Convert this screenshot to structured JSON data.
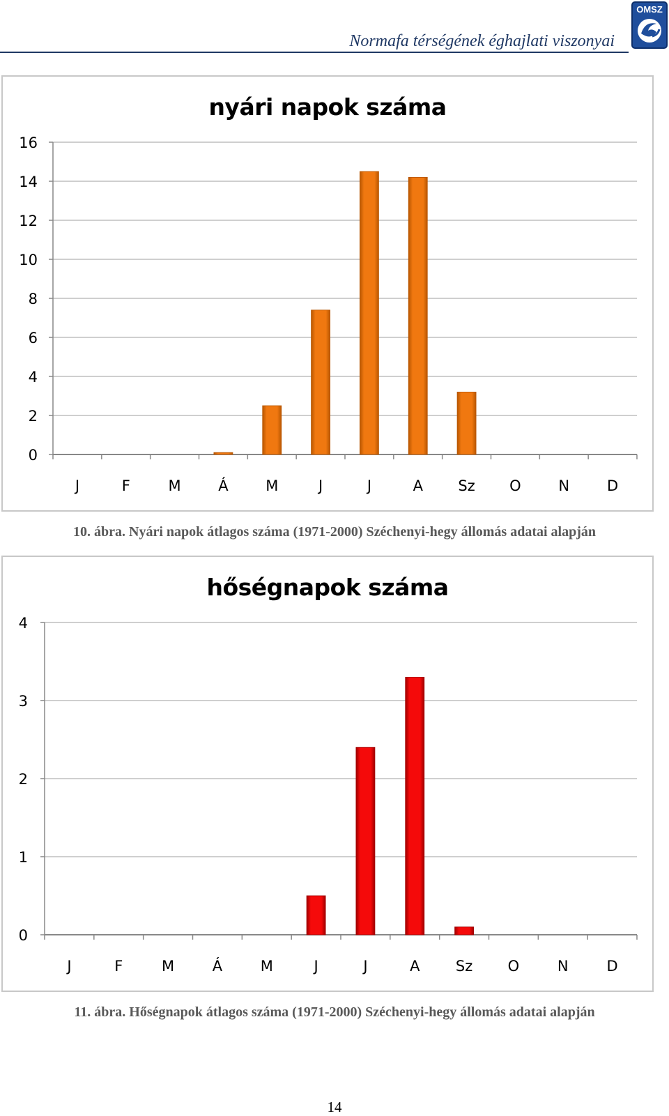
{
  "header": {
    "title": "Normafa térségének éghajlati viszonyai",
    "logo_text": "OMSZ"
  },
  "chart_data": [
    {
      "type": "bar",
      "title": "nyári napok száma",
      "categories": [
        "J",
        "F",
        "M",
        "Á",
        "M",
        "J",
        "J",
        "A",
        "Sz",
        "O",
        "N",
        "D"
      ],
      "values": [
        0,
        0,
        0,
        0.1,
        2.5,
        7.4,
        14.5,
        14.2,
        3.2,
        0,
        0,
        0
      ],
      "ylim": [
        0,
        16
      ],
      "yticks": [
        0,
        2,
        4,
        6,
        8,
        10,
        12,
        14,
        16
      ],
      "grid": true,
      "bar_color": "#f07810",
      "bar_edge_color": "#b85600",
      "caption": "10. ábra. Nyári napok átlagos száma (1971-2000) Széchenyi-hegy állomás adatai alapján"
    },
    {
      "type": "bar",
      "title": "hőségnapok száma",
      "categories": [
        "J",
        "F",
        "M",
        "Á",
        "M",
        "J",
        "J",
        "A",
        "Sz",
        "O",
        "N",
        "D"
      ],
      "values": [
        0,
        0,
        0,
        0,
        0,
        0.5,
        2.4,
        3.3,
        0.1,
        0,
        0,
        0
      ],
      "ylim": [
        0,
        4
      ],
      "yticks": [
        0,
        1,
        2,
        3,
        4
      ],
      "grid": true,
      "bar_color": "#f50a0a",
      "bar_edge_color": "#a00000",
      "caption": "11. ábra. Hőségnapok átlagos száma (1971-2000) Széchenyi-hegy állomás adatai alapján"
    }
  ],
  "page": {
    "number": "14"
  }
}
